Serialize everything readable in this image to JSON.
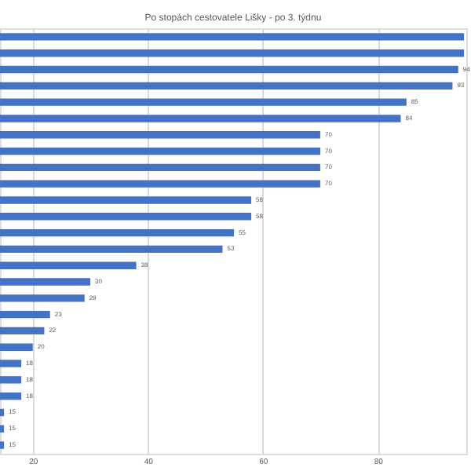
{
  "chart_data": {
    "type": "bar",
    "orientation": "horizontal",
    "title": "Po stopách cestovatele Lišky - po 3. týdnu",
    "categories": [
      null,
      null,
      null,
      null,
      null,
      null,
      null,
      null,
      null,
      null,
      null,
      null,
      null,
      null,
      null,
      null,
      null,
      null,
      null,
      null,
      null,
      null,
      null,
      null,
      null,
      null
    ],
    "values": [
      95,
      95,
      94,
      93,
      85,
      84,
      70,
      70,
      70,
      70,
      58,
      58,
      55,
      53,
      38,
      30,
      29,
      23,
      22,
      20,
      18,
      18,
      18,
      15,
      15,
      15
    ],
    "value_labels": [
      null,
      null,
      "94",
      "93",
      "85",
      "84",
      "70",
      "70",
      "70",
      "70",
      "58",
      "58",
      "55",
      "53",
      "38",
      "30",
      "29",
      "23",
      "22",
      "20",
      "18",
      "18",
      "18",
      "15",
      "15",
      "15"
    ],
    "color": "#4472c4",
    "xlim": [
      14.3,
      95.4
    ],
    "xticks": [
      20,
      40,
      60,
      80
    ],
    "grid": "x",
    "tick_labels": "x"
  }
}
